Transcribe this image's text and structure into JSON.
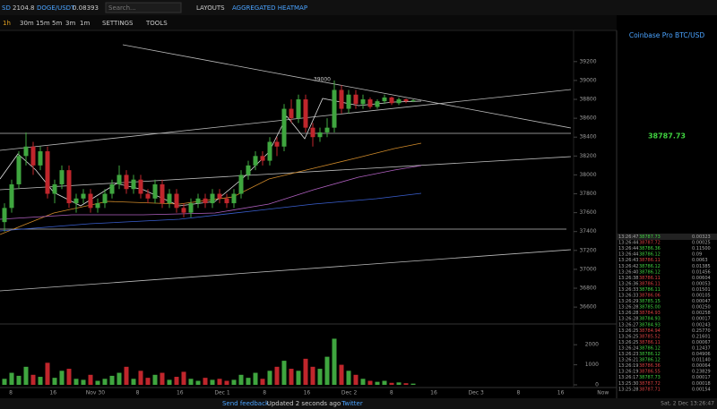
{
  "header": {
    "tickers": [
      "SD",
      "2104.8",
      "DOGE/USDT",
      "0.08393"
    ],
    "search_placeholder": "Search...",
    "menu": [
      "LAYOUTS",
      "AGGREGATED HEATMAP"
    ]
  },
  "toolbar": {
    "timeframes": [
      "1h",
      "30m",
      "15m",
      "5m",
      "3m",
      "1m"
    ],
    "menus": [
      "SETTINGS",
      "TOOLS"
    ]
  },
  "chart": {
    "type": "candlestick",
    "up_color": "#3fa63f",
    "down_color": "#c0262c",
    "ylim": [
      36440,
      39530
    ],
    "yticks": [
      39200,
      39000,
      38800,
      38600,
      38400,
      38200,
      38000,
      37800,
      37600,
      37400,
      37200,
      37000,
      36800,
      36600
    ],
    "annotation": "39000",
    "x_labels": [
      "8",
      "16",
      "Nov 30",
      "8",
      "16",
      "Dec 1",
      "8",
      "16",
      "Dec 2",
      "8",
      "16",
      "Dec 3",
      "8",
      "16",
      "Now"
    ],
    "candles": [
      [
        37500,
        37700,
        37400,
        37650
      ],
      [
        37650,
        37950,
        37600,
        37900
      ],
      [
        37900,
        38250,
        37850,
        38200
      ],
      [
        38200,
        38450,
        38100,
        38300
      ],
      [
        38300,
        38350,
        38000,
        38100
      ],
      [
        38100,
        38300,
        38050,
        38250
      ],
      [
        38250,
        38300,
        37750,
        37800
      ],
      [
        37800,
        37950,
        37700,
        37900
      ],
      [
        37900,
        38100,
        37850,
        38050
      ],
      [
        38050,
        38100,
        37650,
        37700
      ],
      [
        37700,
        37800,
        37600,
        37750
      ],
      [
        37750,
        37850,
        37700,
        37800
      ],
      [
        37800,
        37850,
        37600,
        37650
      ],
      [
        37650,
        37750,
        37600,
        37700
      ],
      [
        37700,
        37850,
        37650,
        37800
      ],
      [
        37800,
        37950,
        37750,
        37900
      ],
      [
        37900,
        38100,
        37850,
        38000
      ],
      [
        38000,
        38050,
        37800,
        37850
      ],
      [
        37850,
        38000,
        37800,
        37950
      ],
      [
        37950,
        38000,
        37750,
        37800
      ],
      [
        37800,
        37850,
        37700,
        37750
      ],
      [
        37750,
        37950,
        37700,
        37900
      ],
      [
        37900,
        37950,
        37650,
        37700
      ],
      [
        37700,
        37850,
        37650,
        37800
      ],
      [
        37800,
        37850,
        37600,
        37650
      ],
      [
        37650,
        37700,
        37550,
        37600
      ],
      [
        37600,
        37750,
        37550,
        37700
      ],
      [
        37700,
        37800,
        37650,
        37750
      ],
      [
        37750,
        37800,
        37650,
        37700
      ],
      [
        37700,
        37850,
        37650,
        37800
      ],
      [
        37800,
        37850,
        37700,
        37750
      ],
      [
        37750,
        37800,
        37650,
        37700
      ],
      [
        37700,
        37850,
        37650,
        37800
      ],
      [
        37800,
        38050,
        37750,
        38000
      ],
      [
        38000,
        38150,
        37950,
        38100
      ],
      [
        38100,
        38250,
        38050,
        38200
      ],
      [
        38200,
        38250,
        38100,
        38150
      ],
      [
        38150,
        38400,
        38100,
        38350
      ],
      [
        38350,
        38400,
        38200,
        38300
      ],
      [
        38300,
        38750,
        38250,
        38700
      ],
      [
        38700,
        38800,
        38550,
        38600
      ],
      [
        38600,
        38850,
        38550,
        38800
      ],
      [
        38800,
        38850,
        38450,
        38500
      ],
      [
        38500,
        38550,
        38300,
        38400
      ],
      [
        38400,
        38500,
        38350,
        38450
      ],
      [
        38450,
        38600,
        38400,
        38500
      ],
      [
        38500,
        39000,
        38450,
        38900
      ],
      [
        38900,
        38950,
        38650,
        38700
      ],
      [
        38700,
        38900,
        38650,
        38850
      ],
      [
        38850,
        38900,
        38700,
        38750
      ],
      [
        38750,
        38850,
        38700,
        38800
      ],
      [
        38800,
        38820,
        38700,
        38720
      ],
      [
        38720,
        38800,
        38700,
        38780
      ],
      [
        38780,
        38850,
        38750,
        38820
      ],
      [
        38820,
        38830,
        38740,
        38760
      ],
      [
        38760,
        38820,
        38740,
        38800
      ],
      [
        38800,
        38810,
        38760,
        38780
      ],
      [
        38780,
        38800,
        38770,
        38790
      ]
    ],
    "volume": [
      300,
      600,
      450,
      900,
      500,
      400,
      1100,
      350,
      700,
      800,
      300,
      250,
      500,
      200,
      300,
      450,
      600,
      900,
      300,
      700,
      350,
      500,
      600,
      250,
      400,
      650,
      300,
      200,
      350,
      250,
      300,
      200,
      250,
      500,
      350,
      600,
      300,
      700,
      900,
      1200,
      800,
      700,
      1300,
      900,
      800,
      1400,
      2300,
      1000,
      700,
      500,
      300,
      200,
      150,
      200,
      100,
      120,
      80,
      60
    ],
    "vol_ylim": [
      0,
      2900
    ],
    "vol_yticks": [
      2000,
      1000,
      0
    ]
  },
  "panel": {
    "title": "Coinbase Pro BTC/USD",
    "price": "38787.73",
    "trades": [
      [
        "13:26:47",
        "38787.73",
        "0.00323",
        "#3fd13f"
      ],
      [
        "13:26:44",
        "38787.72",
        "0.00025",
        "#d84040"
      ],
      [
        "13:26:44",
        "38786.36",
        "0.11500",
        "#3fd13f"
      ],
      [
        "13:26:44",
        "38786.12",
        "0.09",
        "#3fd13f"
      ],
      [
        "13:26:43",
        "38786.11",
        "0.0063",
        "#d84040"
      ],
      [
        "13:26:42",
        "38786.12",
        "0.01385",
        "#3fd13f"
      ],
      [
        "13:26:40",
        "38786.12",
        "0.01456",
        "#3fd13f"
      ],
      [
        "13:26:38",
        "38786.11",
        "0.00604",
        "#d84040"
      ],
      [
        "13:26:36",
        "38786.11",
        "0.00053",
        "#d84040"
      ],
      [
        "13:26:33",
        "38786.11",
        "0.01501",
        "#3fd13f"
      ],
      [
        "13:26:33",
        "38786.06",
        "0.00105",
        "#d84040"
      ],
      [
        "13:26:29",
        "38785.15",
        "0.00047",
        "#3fd13f"
      ],
      [
        "13:26:28",
        "38785.00",
        "0.00250",
        "#3fd13f"
      ],
      [
        "13:26:28",
        "38784.93",
        "0.00258",
        "#d84040"
      ],
      [
        "13:26:28",
        "38784.93",
        "0.00017",
        "#3fd13f"
      ],
      [
        "13:26:27",
        "38784.93",
        "0.00243",
        "#3fd13f"
      ],
      [
        "13:26:25",
        "38784.94",
        "0.25770",
        "#d84040"
      ],
      [
        "13:26:25",
        "38785.52",
        "0.21601",
        "#d84040"
      ],
      [
        "13:26:25",
        "38786.11",
        "0.00067",
        "#d84040"
      ],
      [
        "13:26:24",
        "38786.12",
        "0.12437",
        "#3fd13f"
      ],
      [
        "13:26:23",
        "38786.12",
        "0.04906",
        "#3fd13f"
      ],
      [
        "13:26:21",
        "38786.12",
        "0.01140",
        "#3fd13f"
      ],
      [
        "13:26:19",
        "38786.36",
        "0.00064",
        "#d84040"
      ],
      [
        "13:26:19",
        "38786.55",
        "0.23829",
        "#d84040"
      ],
      [
        "13:26:17",
        "38787.73",
        "0.00017",
        "#3fd13f"
      ],
      [
        "13:25:30",
        "38787.72",
        "0.00018",
        "#d84040"
      ],
      [
        "13:25:28",
        "38787.71",
        "0.00154",
        "#d84040"
      ]
    ]
  },
  "footer": {
    "links": [
      "Send feedback",
      "Updated 2 seconds ago",
      "Twitter"
    ],
    "clock": "Sat, 2 Dec 13:26:47"
  }
}
